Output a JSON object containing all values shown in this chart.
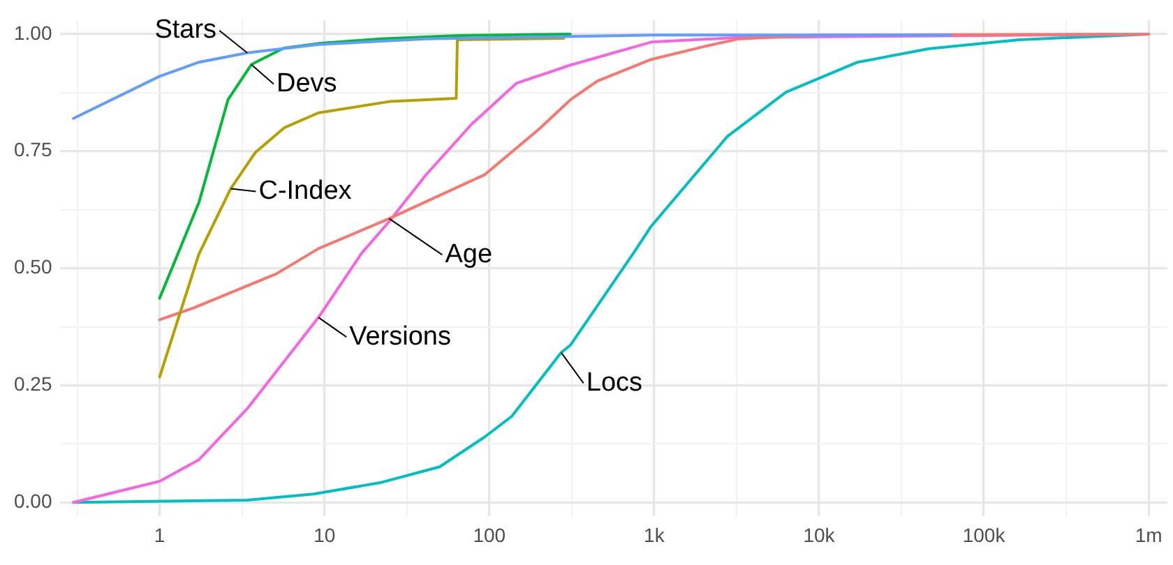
{
  "chart_data": {
    "type": "line",
    "log": "x",
    "grid": true,
    "legend": false,
    "marker": "none",
    "line_style": "solid",
    "xlim": [
      0.25,
      1300000
    ],
    "xticks": [
      {
        "value": 0.316,
        "label": null
      },
      1,
      {
        "value": 3.16,
        "label": null
      },
      10,
      {
        "value": 31.6,
        "label": null
      },
      100,
      {
        "value": 316,
        "label": null
      },
      {
        "value": 1000,
        "label": "1k"
      },
      {
        "value": 3160,
        "label": null
      },
      {
        "value": 10000,
        "label": "10k"
      },
      {
        "value": 31600,
        "label": null
      },
      {
        "value": 100000,
        "label": "100k"
      },
      {
        "value": 316000,
        "label": null
      },
      {
        "value": 1000000,
        "label": "1m"
      }
    ],
    "ylim": [
      -0.03,
      1.03
    ],
    "yticks": [
      {
        "value": 0,
        "label": "0.00"
      },
      {
        "value": 0.125,
        "label": null
      },
      0.25,
      {
        "value": 0.375,
        "label": null
      },
      {
        "value": 0.5,
        "label": "0.50"
      },
      {
        "value": 0.625,
        "label": null
      },
      0.75,
      {
        "value": 0.875,
        "label": null
      },
      {
        "value": 1,
        "label": "1.00"
      }
    ],
    "series": [
      {
        "name": "Stars",
        "color": "#619cff",
        "x": [
          0.3,
          1,
          1.73,
          3.4,
          9.2,
          41,
          1000,
          62500
        ],
        "values": [
          0.82,
          0.91,
          0.94,
          0.96,
          0.978,
          0.99,
          0.998,
          0.998
        ]
      },
      {
        "name": "Devs",
        "color": "#00ba38",
        "x": [
          1,
          1.73,
          2.6,
          3.6,
          5.66,
          9.2,
          21.7,
          64,
          310
        ],
        "values": [
          0.436,
          0.64,
          0.86,
          0.935,
          0.97,
          0.98,
          0.99,
          0.997,
          1
        ]
      },
      {
        "name": "C-Index",
        "color": "#b79f00",
        "x": [
          1,
          1.73,
          2.7,
          3.8,
          5.7,
          9.2,
          24.7,
          63,
          64,
          283
        ],
        "values": [
          0.268,
          0.53,
          0.67,
          0.747,
          0.8,
          0.832,
          0.856,
          0.863,
          0.988,
          0.991
        ]
      },
      {
        "name": "Age",
        "color": "#f8766d",
        "x": [
          1,
          1.6,
          5.1,
          9.2,
          24.7,
          94,
          200,
          311,
          453,
          961,
          2040,
          3270,
          10000,
          1000000
        ],
        "values": [
          0.39,
          0.415,
          0.488,
          0.542,
          0.606,
          0.7,
          0.797,
          0.86,
          0.9,
          0.946,
          0.974,
          0.99,
          0.998,
          1
        ]
      },
      {
        "name": "Versions",
        "color": "#f564e3",
        "x": [
          0.3,
          1,
          1.73,
          3.4,
          9.2,
          16.8,
          24.7,
          41.2,
          77.8,
          146,
          311,
          961,
          3270,
          1000000
        ],
        "values": [
          0,
          0.045,
          0.091,
          0.2,
          0.395,
          0.532,
          0.6,
          0.699,
          0.807,
          0.895,
          0.934,
          0.983,
          0.993,
          1
        ]
      },
      {
        "name": "Locs",
        "color": "#00bfc4",
        "x": [
          0.3,
          3.4,
          8.6,
          21.7,
          50,
          94,
          137,
          273,
          311,
          748,
          961,
          2790,
          6310,
          17150,
          46800,
          163700,
          1000000
        ],
        "values": [
          0,
          0.005,
          0.018,
          0.042,
          0.076,
          0.14,
          0.184,
          0.32,
          0.336,
          0.532,
          0.59,
          0.782,
          0.876,
          0.94,
          0.969,
          0.988,
          1
        ]
      }
    ]
  }
}
